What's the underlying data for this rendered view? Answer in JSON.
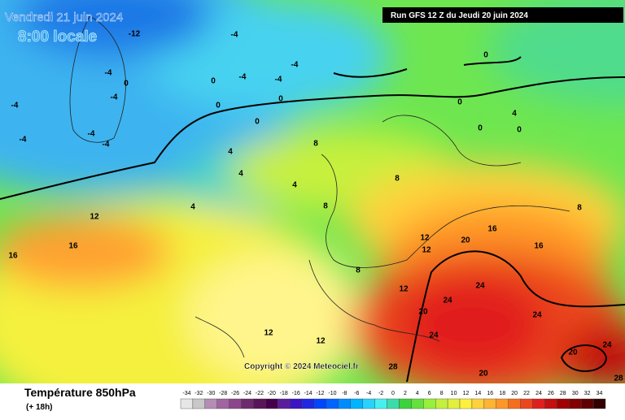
{
  "header": {
    "date": "Vendredi 21 juin 2024",
    "time": "8:00 locale",
    "run": "Run GFS 12 Z du Jeudi 20 juin 2024"
  },
  "footer": {
    "title": "Température 850hPa",
    "lead": "(+ 18h)",
    "copyright": "Copyright © 2024 Meteociel.fr"
  },
  "scale": {
    "values": [
      -34,
      -32,
      -30,
      -28,
      -26,
      -24,
      -22,
      -20,
      -18,
      -16,
      -14,
      -12,
      -10,
      -8,
      -6,
      -4,
      -2,
      0,
      2,
      4,
      6,
      8,
      10,
      12,
      14,
      16,
      18,
      20,
      22,
      24,
      26,
      28,
      30,
      32,
      34
    ],
    "colors": [
      "#e6e6e6",
      "#c8c8c8",
      "#b48cb4",
      "#a064a0",
      "#8c468c",
      "#6e2a6e",
      "#5a145a",
      "#46004b",
      "#5a1e9b",
      "#3c14c3",
      "#1e28e1",
      "#0046ff",
      "#0064ff",
      "#008cff",
      "#00b4ff",
      "#28d2ff",
      "#46f0f0",
      "#3cdcaa",
      "#3cd23c",
      "#64e13c",
      "#96f03c",
      "#c3f03c",
      "#e1f03c",
      "#fff03c",
      "#ffd23c",
      "#ffb432",
      "#ff9628",
      "#f56e1e",
      "#eb461e",
      "#e11e1e",
      "#c30f0f",
      "#a00000",
      "#820000",
      "#5f0000",
      "#320000"
    ]
  },
  "map_labels": [
    "-12",
    "-4",
    "-4",
    "-4",
    "-4",
    "-4",
    "-4",
    "-4",
    "-4",
    "-4",
    "-4",
    "0",
    "0",
    "0",
    "0",
    "0",
    "0",
    "0",
    "0",
    "0",
    "4",
    "4",
    "4",
    "4",
    "4",
    "8",
    "8",
    "8",
    "8",
    "8",
    "12",
    "12",
    "12",
    "12",
    "12",
    "12",
    "16",
    "16",
    "16",
    "16",
    "20",
    "20",
    "20",
    "20",
    "24",
    "24",
    "24",
    "24",
    "24",
    "28",
    "28"
  ]
}
